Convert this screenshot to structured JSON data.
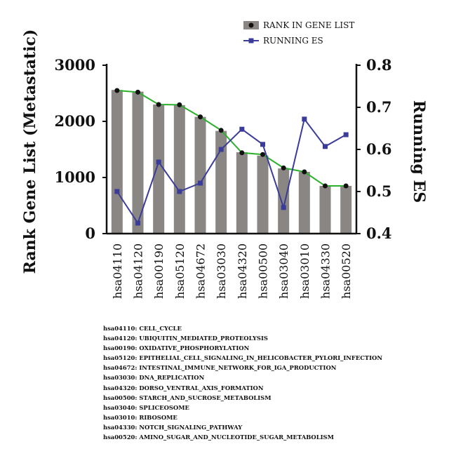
{
  "chart_data": {
    "type": "bar+line",
    "categories": [
      "hsa04110",
      "hsa04120",
      "hsa00190",
      "hsa05120",
      "hsa04672",
      "hsa03030",
      "hsa04320",
      "hsa00500",
      "hsa03040",
      "hsa03010",
      "hsa04330",
      "hsa00520"
    ],
    "series": [
      {
        "name": "RANK IN GENE LIST",
        "type": "bar",
        "axis": "left",
        "values": [
          2560,
          2530,
          2300,
          2290,
          2080,
          1830,
          1450,
          1390,
          1160,
          1100,
          850,
          850
        ],
        "color": "#8a8683"
      },
      {
        "name": "",
        "type": "line",
        "axis": "left",
        "values": [
          2550,
          2520,
          2300,
          2295,
          2080,
          1840,
          1440,
          1410,
          1170,
          1100,
          850,
          850
        ],
        "color": "#2db02d"
      },
      {
        "name": "RUNNING ES",
        "type": "line",
        "axis": "right",
        "values": [
          0.5,
          0.425,
          0.57,
          0.5,
          0.52,
          0.6,
          0.648,
          0.612,
          0.462,
          0.672,
          0.607,
          0.635
        ],
        "color": "#3b3c99"
      }
    ],
    "ylabel": "Rank Gene List (Metastatic)",
    "ylabel_right": "Running ES",
    "ylim": [
      0,
      3000
    ],
    "ylim_right": [
      0.4,
      0.8
    ],
    "yticks": [
      "0",
      "1000",
      "2000",
      "3000"
    ],
    "yticks_right": [
      "0.4",
      "0.5",
      "0.6",
      "0.7",
      "0.8"
    ],
    "legend_position": "top-right",
    "grid": false
  },
  "notes": [
    "hsa04110: CELL_CYCLE",
    "hsa04120: UBIQUITIN_MEDIATED_PROTEOLYSIS",
    "hsa00190: OXIDATIVE_PHOSPHORYLATION",
    "hsa05120: EPITHELIAL_CELL_SIGNALING_IN_HELICOBACTER_PYLORI_INFECTION",
    "hsa04672: INTESTINAL_IMMUNE_NETWORK_FOR_IGA_PRODUCTION",
    "hsa03030: DNA_REPLICATION",
    "hsa04320: DORSO_VENTRAL_AXIS_FORMATION",
    "hsa00500: STARCH_AND_SUCROSE_METABOLISM",
    "hsa03040: SPLICEOSOME",
    "hsa03010: RIBOSOME",
    "hsa04330: NOTCH_SIGNALING_PATHWAY",
    "hsa00520: AMINO_SUGAR_AND_NUCLEOTIDE_SUGAR_METABOLISM"
  ]
}
